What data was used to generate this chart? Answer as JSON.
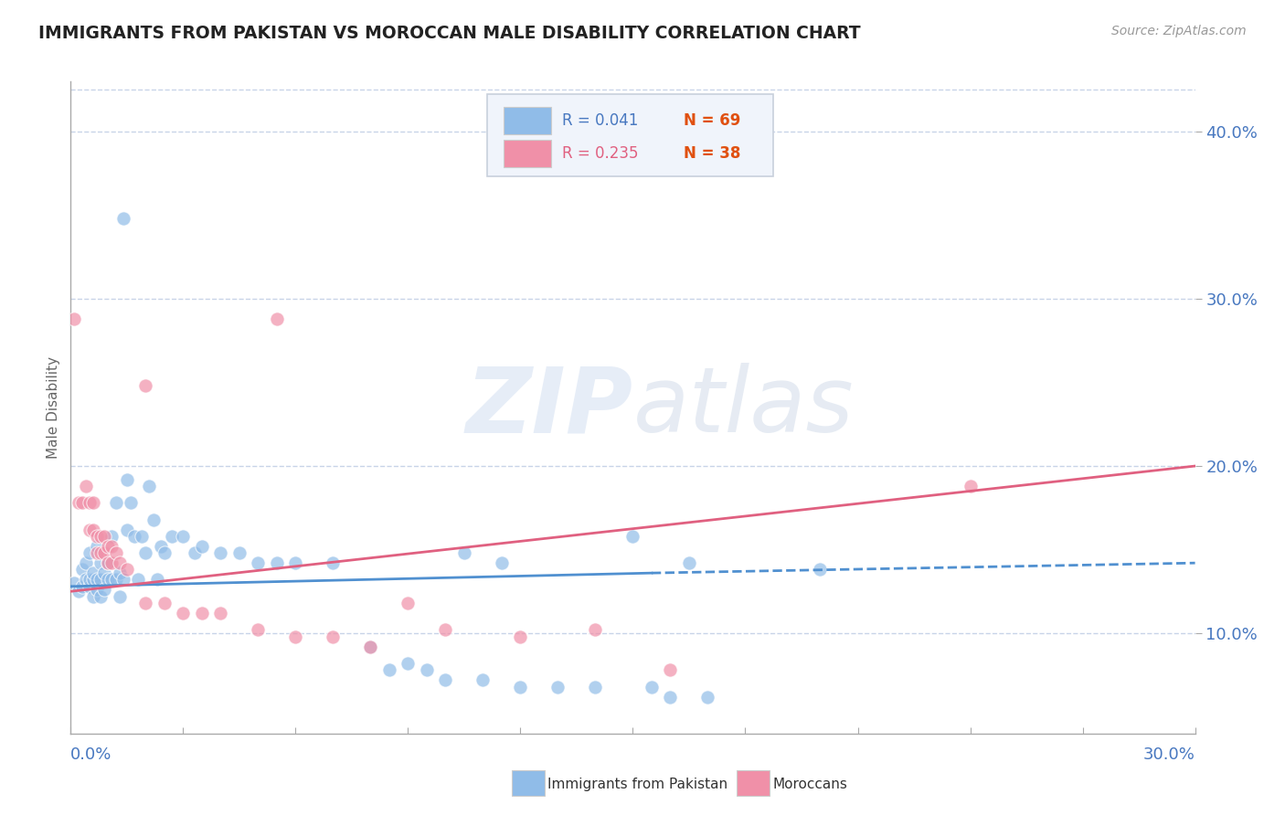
{
  "title": "IMMIGRANTS FROM PAKISTAN VS MOROCCAN MALE DISABILITY CORRELATION CHART",
  "source": "Source: ZipAtlas.com",
  "ylabel": "Male Disability",
  "xlim": [
    0.0,
    0.3
  ],
  "ylim": [
    0.04,
    0.43
  ],
  "yticks": [
    0.1,
    0.2,
    0.3,
    0.4
  ],
  "ytick_labels": [
    "10.0%",
    "20.0%",
    "30.0%",
    "40.0%"
  ],
  "pakistan_scatter": [
    [
      0.001,
      0.13
    ],
    [
      0.002,
      0.125
    ],
    [
      0.003,
      0.128
    ],
    [
      0.003,
      0.138
    ],
    [
      0.004,
      0.132
    ],
    [
      0.004,
      0.142
    ],
    [
      0.005,
      0.128
    ],
    [
      0.005,
      0.132
    ],
    [
      0.005,
      0.148
    ],
    [
      0.006,
      0.122
    ],
    [
      0.006,
      0.132
    ],
    [
      0.006,
      0.136
    ],
    [
      0.007,
      0.126
    ],
    [
      0.007,
      0.132
    ],
    [
      0.007,
      0.152
    ],
    [
      0.008,
      0.122
    ],
    [
      0.008,
      0.132
    ],
    [
      0.008,
      0.142
    ],
    [
      0.009,
      0.126
    ],
    [
      0.009,
      0.136
    ],
    [
      0.01,
      0.132
    ],
    [
      0.01,
      0.142
    ],
    [
      0.011,
      0.132
    ],
    [
      0.011,
      0.158
    ],
    [
      0.012,
      0.132
    ],
    [
      0.012,
      0.178
    ],
    [
      0.013,
      0.122
    ],
    [
      0.013,
      0.136
    ],
    [
      0.014,
      0.132
    ],
    [
      0.015,
      0.162
    ],
    [
      0.015,
      0.192
    ],
    [
      0.016,
      0.178
    ],
    [
      0.017,
      0.158
    ],
    [
      0.018,
      0.132
    ],
    [
      0.019,
      0.158
    ],
    [
      0.02,
      0.148
    ],
    [
      0.021,
      0.188
    ],
    [
      0.022,
      0.168
    ],
    [
      0.023,
      0.132
    ],
    [
      0.024,
      0.152
    ],
    [
      0.025,
      0.148
    ],
    [
      0.027,
      0.158
    ],
    [
      0.03,
      0.158
    ],
    [
      0.033,
      0.148
    ],
    [
      0.035,
      0.152
    ],
    [
      0.04,
      0.148
    ],
    [
      0.045,
      0.148
    ],
    [
      0.05,
      0.142
    ],
    [
      0.055,
      0.142
    ],
    [
      0.06,
      0.142
    ],
    [
      0.07,
      0.142
    ],
    [
      0.08,
      0.092
    ],
    [
      0.085,
      0.078
    ],
    [
      0.09,
      0.082
    ],
    [
      0.095,
      0.078
    ],
    [
      0.1,
      0.072
    ],
    [
      0.105,
      0.148
    ],
    [
      0.11,
      0.072
    ],
    [
      0.115,
      0.142
    ],
    [
      0.12,
      0.068
    ],
    [
      0.13,
      0.068
    ],
    [
      0.14,
      0.068
    ],
    [
      0.15,
      0.158
    ],
    [
      0.155,
      0.068
    ],
    [
      0.16,
      0.062
    ],
    [
      0.165,
      0.142
    ],
    [
      0.17,
      0.062
    ],
    [
      0.2,
      0.138
    ],
    [
      0.014,
      0.348
    ]
  ],
  "moroccan_scatter": [
    [
      0.001,
      0.288
    ],
    [
      0.002,
      0.178
    ],
    [
      0.003,
      0.178
    ],
    [
      0.004,
      0.188
    ],
    [
      0.005,
      0.178
    ],
    [
      0.005,
      0.162
    ],
    [
      0.006,
      0.178
    ],
    [
      0.006,
      0.162
    ],
    [
      0.007,
      0.158
    ],
    [
      0.007,
      0.148
    ],
    [
      0.008,
      0.158
    ],
    [
      0.008,
      0.148
    ],
    [
      0.009,
      0.158
    ],
    [
      0.009,
      0.148
    ],
    [
      0.01,
      0.152
    ],
    [
      0.01,
      0.142
    ],
    [
      0.011,
      0.152
    ],
    [
      0.011,
      0.142
    ],
    [
      0.012,
      0.148
    ],
    [
      0.013,
      0.142
    ],
    [
      0.015,
      0.138
    ],
    [
      0.02,
      0.118
    ],
    [
      0.025,
      0.118
    ],
    [
      0.03,
      0.112
    ],
    [
      0.035,
      0.112
    ],
    [
      0.04,
      0.112
    ],
    [
      0.05,
      0.102
    ],
    [
      0.06,
      0.098
    ],
    [
      0.07,
      0.098
    ],
    [
      0.08,
      0.092
    ],
    [
      0.09,
      0.118
    ],
    [
      0.1,
      0.102
    ],
    [
      0.12,
      0.098
    ],
    [
      0.14,
      0.102
    ],
    [
      0.24,
      0.188
    ],
    [
      0.055,
      0.288
    ],
    [
      0.16,
      0.078
    ],
    [
      0.02,
      0.248
    ]
  ],
  "pakistan_line_solid": {
    "x": [
      0.0,
      0.155
    ],
    "y": [
      0.128,
      0.136
    ]
  },
  "pakistan_line_dashed": {
    "x": [
      0.155,
      0.3
    ],
    "y": [
      0.136,
      0.142
    ]
  },
  "moroccan_line": {
    "x": [
      0.0,
      0.3
    ],
    "y": [
      0.125,
      0.2
    ]
  },
  "pakistan_color": "#90bce8",
  "moroccan_color": "#f090a8",
  "pakistan_line_color": "#5090d0",
  "moroccan_line_color": "#e06080",
  "background_color": "#ffffff",
  "grid_color": "#c8d4e8",
  "title_color": "#222222",
  "tick_label_color": "#4878c0",
  "legend_bg": "#f0f4fb",
  "legend_border": "#c8d0dc"
}
